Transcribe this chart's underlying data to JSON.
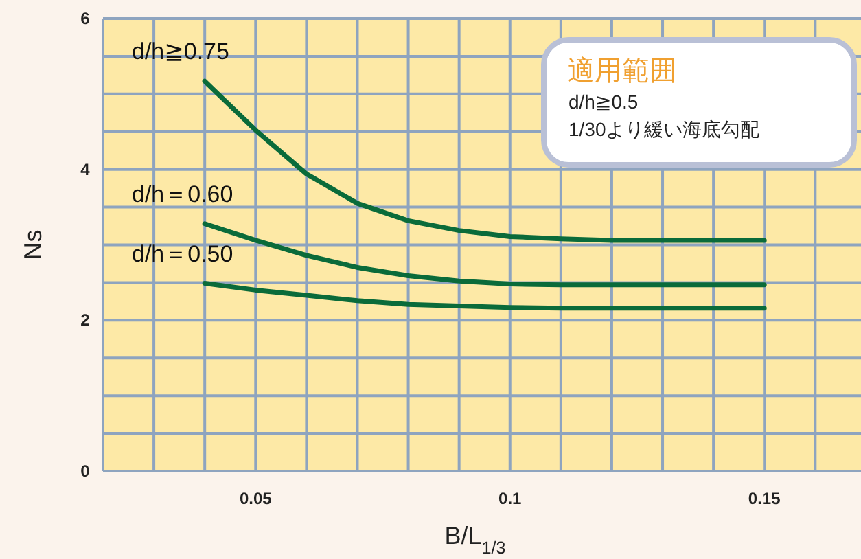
{
  "chart_data": {
    "type": "line",
    "xlabel": "B/L$_{1/3}$",
    "ylabel": "Ns",
    "x": [
      0.04,
      0.05,
      0.06,
      0.07,
      0.08,
      0.09,
      0.1,
      0.11,
      0.12,
      0.13,
      0.14,
      0.15
    ],
    "series": [
      {
        "name": "d/h≧0.75",
        "color": "#0a6b3a",
        "values": [
          5.17,
          4.52,
          3.94,
          3.55,
          3.32,
          3.19,
          3.11,
          3.08,
          3.06,
          3.06,
          3.06,
          3.06
        ]
      },
      {
        "name": "d/h＝0.60",
        "color": "#0a6b3a",
        "values": [
          3.28,
          3.06,
          2.86,
          2.7,
          2.59,
          2.52,
          2.48,
          2.47,
          2.47,
          2.47,
          2.47,
          2.47
        ]
      },
      {
        "name": "d/h＝0.50",
        "color": "#0a6b3a",
        "values": [
          2.49,
          2.4,
          2.33,
          2.26,
          2.21,
          2.19,
          2.17,
          2.16,
          2.16,
          2.16,
          2.16,
          2.16
        ]
      }
    ],
    "xlim": [
      0.02,
      0.169
    ],
    "ylim": [
      0,
      6
    ],
    "xticks": [
      {
        "value": 0.02,
        "label": null
      },
      {
        "value": 0.03,
        "label": null
      },
      {
        "value": 0.04,
        "label": null
      },
      0.05,
      {
        "value": 0.06,
        "label": null
      },
      {
        "value": 0.07,
        "label": null
      },
      {
        "value": 0.08,
        "label": null
      },
      {
        "value": 0.09,
        "label": null
      },
      0.1,
      {
        "value": 0.11,
        "label": null
      },
      {
        "value": 0.12,
        "label": null
      },
      {
        "value": 0.13,
        "label": null
      },
      {
        "value": 0.14,
        "label": null
      },
      0.15,
      {
        "value": 0.16,
        "label": null
      }
    ],
    "yticks": [
      0,
      {
        "value": 0.5,
        "label": null
      },
      {
        "value": 1,
        "label": null
      },
      {
        "value": 1.5,
        "label": null
      },
      2,
      {
        "value": 2.5,
        "label": null
      },
      {
        "value": 3,
        "label": null
      },
      {
        "value": 3.5,
        "label": null
      },
      4,
      {
        "value": 4.5,
        "label": null
      },
      {
        "value": 5,
        "label": null
      },
      {
        "value": 5.5,
        "label": null
      },
      6
    ],
    "grid": true,
    "marker": "none",
    "line_style": "solid",
    "annotations": [
      "適用範囲",
      "d/h≧0.5",
      "1/30より緩い海底勾配"
    ]
  }
}
